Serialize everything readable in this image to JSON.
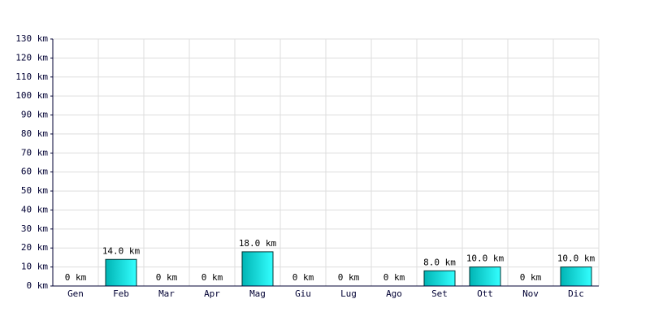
{
  "chart_data": {
    "type": "bar",
    "categories": [
      "Gen",
      "Feb",
      "Mar",
      "Apr",
      "Mag",
      "Giu",
      "Lug",
      "Ago",
      "Set",
      "Ott",
      "Nov",
      "Dic"
    ],
    "values": [
      0,
      14,
      0,
      0,
      18,
      0,
      0,
      0,
      8,
      10,
      0,
      10
    ],
    "value_labels": [
      "0 km",
      "14.0 km",
      "0 km",
      "0 km",
      "18.0 km",
      "0 km",
      "0 km",
      "0 km",
      "8.0 km",
      "10.0 km",
      "0 km",
      "10.0 km"
    ],
    "color": "#00b4b4",
    "ylim": [
      0,
      130
    ],
    "yticks": [
      {
        "value": 0,
        "label": "0 km"
      },
      {
        "value": 10,
        "label": "10 km"
      },
      {
        "value": 20,
        "label": "20 km"
      },
      {
        "value": 30,
        "label": "30 km"
      },
      {
        "value": 40,
        "label": "40 km"
      },
      {
        "value": 50,
        "label": "50 km"
      },
      {
        "value": 60,
        "label": "60 km"
      },
      {
        "value": 70,
        "label": "70 km"
      },
      {
        "value": 80,
        "label": "80 km"
      },
      {
        "value": 90,
        "label": "90 km"
      },
      {
        "value": 100,
        "label": "100 km"
      },
      {
        "value": 110,
        "label": "110 km"
      },
      {
        "value": 120,
        "label": "120 km"
      },
      {
        "value": 130,
        "label": "130 km"
      }
    ],
    "grid": true
  }
}
